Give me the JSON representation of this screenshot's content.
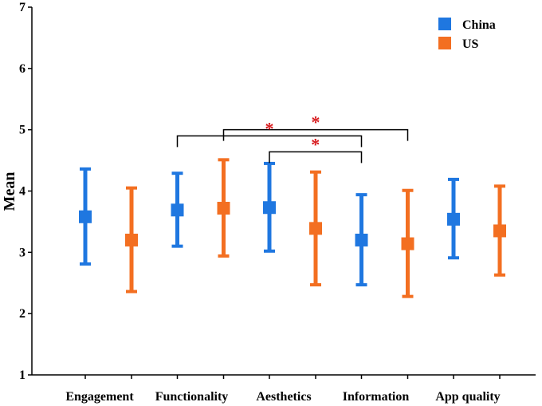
{
  "chart_data": {
    "type": "errorbar",
    "title": "",
    "xlabel": "",
    "ylabel": "Mean",
    "ylim": [
      1,
      7
    ],
    "yticks": [
      "1",
      "2",
      "3",
      "4",
      "5",
      "6",
      "7"
    ],
    "categories": [
      "Engagement",
      "Functionality",
      "Aesthetics",
      "Information",
      "App quality"
    ],
    "legend_position": "top-right",
    "series": [
      {
        "name": "China",
        "color": "#1f77e0",
        "mean": [
          3.58,
          3.69,
          3.73,
          3.2,
          3.54
        ],
        "lower": [
          2.81,
          3.1,
          3.02,
          2.47,
          2.91
        ],
        "upper": [
          4.36,
          4.29,
          4.45,
          3.94,
          4.19
        ]
      },
      {
        "name": "US",
        "color": "#f36f21",
        "mean": [
          3.2,
          3.72,
          3.39,
          3.14,
          3.35
        ],
        "lower": [
          2.36,
          2.94,
          2.47,
          2.28,
          2.63
        ],
        "upper": [
          4.05,
          4.51,
          4.31,
          4.01,
          4.08
        ]
      }
    ],
    "significance": [
      {
        "from": {
          "category": 1,
          "series": 1
        },
        "to": {
          "category": 3,
          "series": 1
        },
        "level": 5.0,
        "label": "*"
      },
      {
        "from": {
          "category": 1,
          "series": 0
        },
        "to": {
          "category": 3,
          "series": 0
        },
        "level": 4.9,
        "label": "*"
      },
      {
        "from": {
          "category": 2,
          "series": 0
        },
        "to": {
          "category": 3,
          "series": 0
        },
        "level": 4.64,
        "label": "*"
      }
    ],
    "sig_color": "#d7191c"
  }
}
